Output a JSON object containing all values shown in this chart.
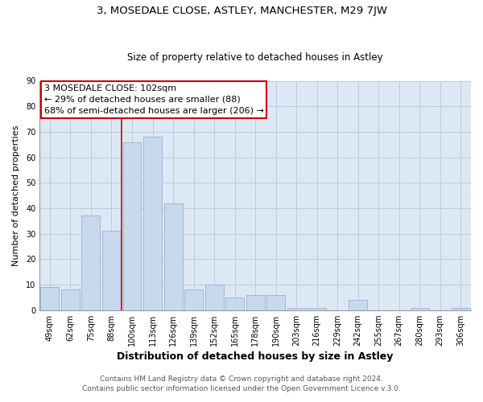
{
  "title1": "3, MOSEDALE CLOSE, ASTLEY, MANCHESTER, M29 7JW",
  "title2": "Size of property relative to detached houses in Astley",
  "xlabel": "Distribution of detached houses by size in Astley",
  "ylabel": "Number of detached properties",
  "footer1": "Contains HM Land Registry data © Crown copyright and database right 2024.",
  "footer2": "Contains public sector information licensed under the Open Government Licence v.3.0.",
  "bar_labels": [
    "49sqm",
    "62sqm",
    "75sqm",
    "88sqm",
    "100sqm",
    "113sqm",
    "126sqm",
    "139sqm",
    "152sqm",
    "165sqm",
    "178sqm",
    "190sqm",
    "203sqm",
    "216sqm",
    "229sqm",
    "242sqm",
    "255sqm",
    "267sqm",
    "280sqm",
    "293sqm",
    "306sqm"
  ],
  "bar_values": [
    9,
    8,
    37,
    31,
    66,
    68,
    42,
    8,
    10,
    5,
    6,
    6,
    1,
    1,
    0,
    4,
    0,
    0,
    1,
    0,
    1
  ],
  "bar_color": "#c8d8ee",
  "bar_edge_color": "#9ab0cc",
  "vline_x_index": 4,
  "vline_color": "#cc0000",
  "annotation_lines": [
    "3 MOSEDALE CLOSE: 102sqm",
    "← 29% of detached houses are smaller (88)",
    "68% of semi-detached houses are larger (206) →"
  ],
  "annotation_box_color": "#ffffff",
  "annotation_box_edge": "#cc0000",
  "ylim": [
    0,
    90
  ],
  "yticks": [
    0,
    10,
    20,
    30,
    40,
    50,
    60,
    70,
    80,
    90
  ],
  "plot_bg_color": "#dde8f5",
  "fig_bg_color": "#ffffff",
  "grid_color": "#bbccdd",
  "title1_fontsize": 9.5,
  "title2_fontsize": 8.5,
  "xlabel_fontsize": 9,
  "ylabel_fontsize": 8,
  "tick_fontsize": 7,
  "footer_fontsize": 6.5,
  "ann_fontsize": 8
}
